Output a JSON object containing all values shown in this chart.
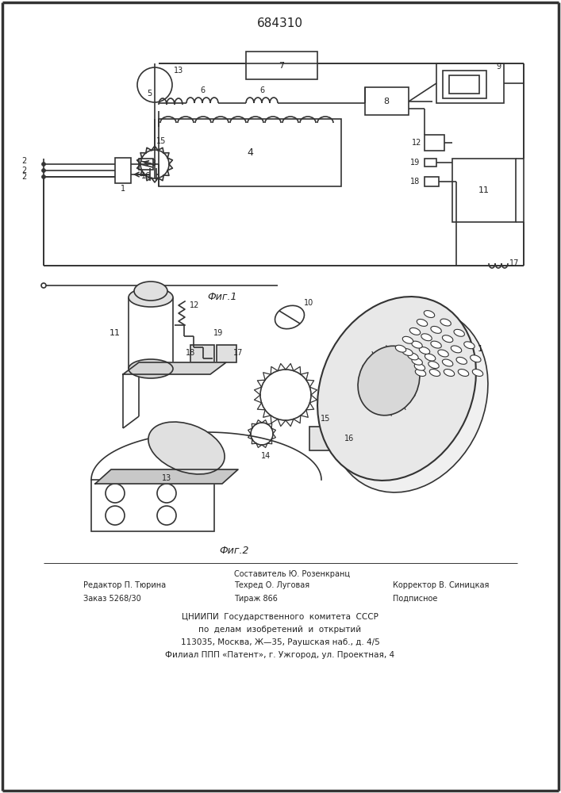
{
  "title": "684310",
  "fig1_label": "Фиг.1",
  "fig2_label": "Фиг.2",
  "footer_left_line1": "Редактор П. Тюрина",
  "footer_left_line2": "Заказ 5268/30",
  "footer_center_line1": "Составитель Ю. Розенкранц",
  "footer_center_line2": "Техред О. Луговая",
  "footer_center_line3": "Тираж 866",
  "footer_right_line1": "Корректор В. Синицкая",
  "footer_right_line2": "Подписное",
  "footer_org1": "ЦНИИПИ  Государственного  комитета  СССР",
  "footer_org2": "по  делам  изобретений  и  открытий",
  "footer_org3": "113035, Москва, Ж—35, Раушская наб., д. 4/5",
  "footer_org4": "Филиал ППП «Патент», г. Ужгород, ул. Проектная, 4",
  "bg_color": "#ffffff",
  "line_color": "#333333",
  "text_color": "#222222"
}
